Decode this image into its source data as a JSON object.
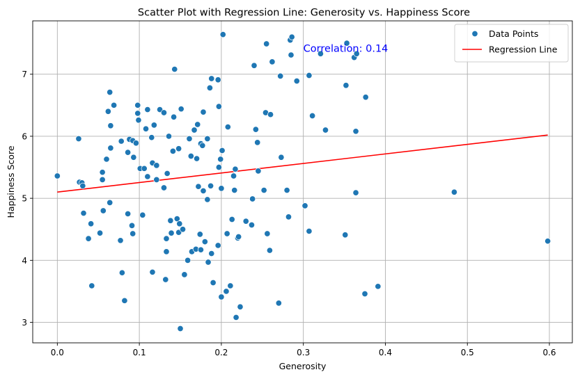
{
  "chart_data": {
    "type": "scatter",
    "title": "Scatter Plot with Regression Line: Generosity vs. Happiness Score",
    "xlabel": "Generosity",
    "ylabel": "Happiness Score",
    "xlim": [
      -0.03,
      0.628
    ],
    "ylim": [
      2.67,
      7.86
    ],
    "xticks": [
      0.0,
      0.1,
      0.2,
      0.3,
      0.4,
      0.5,
      0.6
    ],
    "xtick_labels": [
      "0.0",
      "0.1",
      "0.2",
      "0.3",
      "0.4",
      "0.5",
      "0.6"
    ],
    "yticks": [
      3,
      4,
      5,
      6,
      7
    ],
    "ytick_labels": [
      "3",
      "4",
      "5",
      "6",
      "7"
    ],
    "grid": true,
    "legend_position": "top-right",
    "series": [
      {
        "name": "Data Points",
        "kind": "scatter",
        "color": "#1f77b4",
        "points": [
          [
            0.0,
            5.36
          ],
          [
            0.026,
            5.96
          ],
          [
            0.027,
            5.26
          ],
          [
            0.03,
            5.25
          ],
          [
            0.031,
            5.2
          ],
          [
            0.032,
            4.76
          ],
          [
            0.038,
            4.35
          ],
          [
            0.041,
            4.59
          ],
          [
            0.042,
            3.59
          ],
          [
            0.052,
            4.44
          ],
          [
            0.055,
            5.3
          ],
          [
            0.055,
            5.42
          ],
          [
            0.056,
            4.8
          ],
          [
            0.06,
            5.63
          ],
          [
            0.062,
            6.4
          ],
          [
            0.064,
            4.93
          ],
          [
            0.064,
            6.71
          ],
          [
            0.065,
            5.81
          ],
          [
            0.065,
            6.17
          ],
          [
            0.069,
            6.5
          ],
          [
            0.077,
            4.32
          ],
          [
            0.078,
            5.92
          ],
          [
            0.079,
            3.8
          ],
          [
            0.082,
            3.35
          ],
          [
            0.086,
            5.74
          ],
          [
            0.086,
            4.75
          ],
          [
            0.088,
            5.95
          ],
          [
            0.091,
            4.56
          ],
          [
            0.092,
            5.93
          ],
          [
            0.092,
            4.43
          ],
          [
            0.093,
            5.66
          ],
          [
            0.096,
            5.89
          ],
          [
            0.098,
            6.37
          ],
          [
            0.098,
            6.5
          ],
          [
            0.099,
            6.26
          ],
          [
            0.101,
            5.48
          ],
          [
            0.104,
            4.73
          ],
          [
            0.106,
            5.48
          ],
          [
            0.108,
            6.12
          ],
          [
            0.11,
            6.43
          ],
          [
            0.11,
            5.35
          ],
          [
            0.115,
            5.98
          ],
          [
            0.116,
            5.57
          ],
          [
            0.116,
            3.81
          ],
          [
            0.118,
            6.18
          ],
          [
            0.121,
            5.53
          ],
          [
            0.121,
            5.3
          ],
          [
            0.125,
            6.43
          ],
          [
            0.13,
            6.38
          ],
          [
            0.13,
            5.17
          ],
          [
            0.132,
            3.69
          ],
          [
            0.133,
            4.35
          ],
          [
            0.133,
            4.14
          ],
          [
            0.134,
            5.4
          ],
          [
            0.136,
            6.0
          ],
          [
            0.138,
            4.64
          ],
          [
            0.139,
            4.44
          ],
          [
            0.141,
            5.76
          ],
          [
            0.142,
            6.31
          ],
          [
            0.143,
            7.08
          ],
          [
            0.146,
            4.67
          ],
          [
            0.148,
            4.45
          ],
          [
            0.148,
            5.8
          ],
          [
            0.149,
            4.59
          ],
          [
            0.15,
            2.9
          ],
          [
            0.151,
            6.44
          ],
          [
            0.153,
            4.5
          ],
          [
            0.155,
            3.77
          ],
          [
            0.159,
            4.0
          ],
          [
            0.161,
            5.96
          ],
          [
            0.163,
            5.68
          ],
          [
            0.164,
            4.14
          ],
          [
            0.167,
            6.1
          ],
          [
            0.169,
            4.18
          ],
          [
            0.17,
            5.64
          ],
          [
            0.171,
            6.19
          ],
          [
            0.172,
            5.19
          ],
          [
            0.174,
            4.42
          ],
          [
            0.175,
            4.17
          ],
          [
            0.175,
            5.88
          ],
          [
            0.177,
            5.85
          ],
          [
            0.178,
            6.39
          ],
          [
            0.178,
            5.12
          ],
          [
            0.18,
            4.3
          ],
          [
            0.183,
            5.96
          ],
          [
            0.183,
            4.98
          ],
          [
            0.184,
            3.97
          ],
          [
            0.186,
            6.78
          ],
          [
            0.187,
            5.2
          ],
          [
            0.188,
            6.93
          ],
          [
            0.188,
            4.11
          ],
          [
            0.19,
            3.64
          ],
          [
            0.196,
            6.91
          ],
          [
            0.196,
            4.24
          ],
          [
            0.197,
            6.48
          ],
          [
            0.197,
            5.5
          ],
          [
            0.199,
            5.63
          ],
          [
            0.2,
            3.41
          ],
          [
            0.2,
            5.16
          ],
          [
            0.201,
            5.77
          ],
          [
            0.202,
            7.64
          ],
          [
            0.206,
            3.5
          ],
          [
            0.207,
            4.43
          ],
          [
            0.208,
            6.15
          ],
          [
            0.211,
            3.59
          ],
          [
            0.213,
            4.66
          ],
          [
            0.215,
            5.36
          ],
          [
            0.216,
            5.13
          ],
          [
            0.217,
            5.47
          ],
          [
            0.218,
            3.08
          ],
          [
            0.22,
            4.36
          ],
          [
            0.221,
            4.38
          ],
          [
            0.223,
            3.25
          ],
          [
            0.23,
            4.63
          ],
          [
            0.237,
            4.57
          ],
          [
            0.238,
            4.99
          ],
          [
            0.24,
            7.14
          ],
          [
            0.242,
            6.11
          ],
          [
            0.244,
            5.9
          ],
          [
            0.245,
            5.44
          ],
          [
            0.252,
            5.13
          ],
          [
            0.254,
            6.38
          ],
          [
            0.255,
            7.49
          ],
          [
            0.256,
            4.43
          ],
          [
            0.259,
            4.16
          ],
          [
            0.26,
            6.35
          ],
          [
            0.262,
            7.2
          ],
          [
            0.27,
            3.31
          ],
          [
            0.272,
            6.97
          ],
          [
            0.273,
            5.66
          ],
          [
            0.28,
            5.13
          ],
          [
            0.282,
            4.7
          ],
          [
            0.284,
            7.55
          ],
          [
            0.285,
            7.31
          ],
          [
            0.286,
            7.6
          ],
          [
            0.292,
            6.89
          ],
          [
            0.302,
            4.88
          ],
          [
            0.307,
            4.47
          ],
          [
            0.307,
            6.98
          ],
          [
            0.311,
            6.33
          ],
          [
            0.321,
            7.33
          ],
          [
            0.327,
            6.1
          ],
          [
            0.351,
            4.41
          ],
          [
            0.352,
            6.82
          ],
          [
            0.353,
            7.5
          ],
          [
            0.362,
            7.27
          ],
          [
            0.364,
            6.08
          ],
          [
            0.364,
            5.09
          ],
          [
            0.365,
            7.33
          ],
          [
            0.375,
            3.46
          ],
          [
            0.376,
            6.63
          ],
          [
            0.391,
            3.58
          ],
          [
            0.484,
            5.1
          ],
          [
            0.598,
            4.31
          ]
        ]
      },
      {
        "name": "Regression Line",
        "kind": "line",
        "color": "#ff0000",
        "points": [
          [
            0.0,
            5.1
          ],
          [
            0.598,
            6.02
          ]
        ]
      }
    ],
    "legend": [
      {
        "label": "Data Points",
        "marker": "circle",
        "color": "#1f77b4"
      },
      {
        "label": "Regression Line",
        "marker": "line",
        "color": "#ff0000"
      }
    ],
    "annotation": {
      "text": "Correlation: 0.14",
      "x": 0.3,
      "y": 7.42,
      "color": "#0000ff"
    }
  }
}
